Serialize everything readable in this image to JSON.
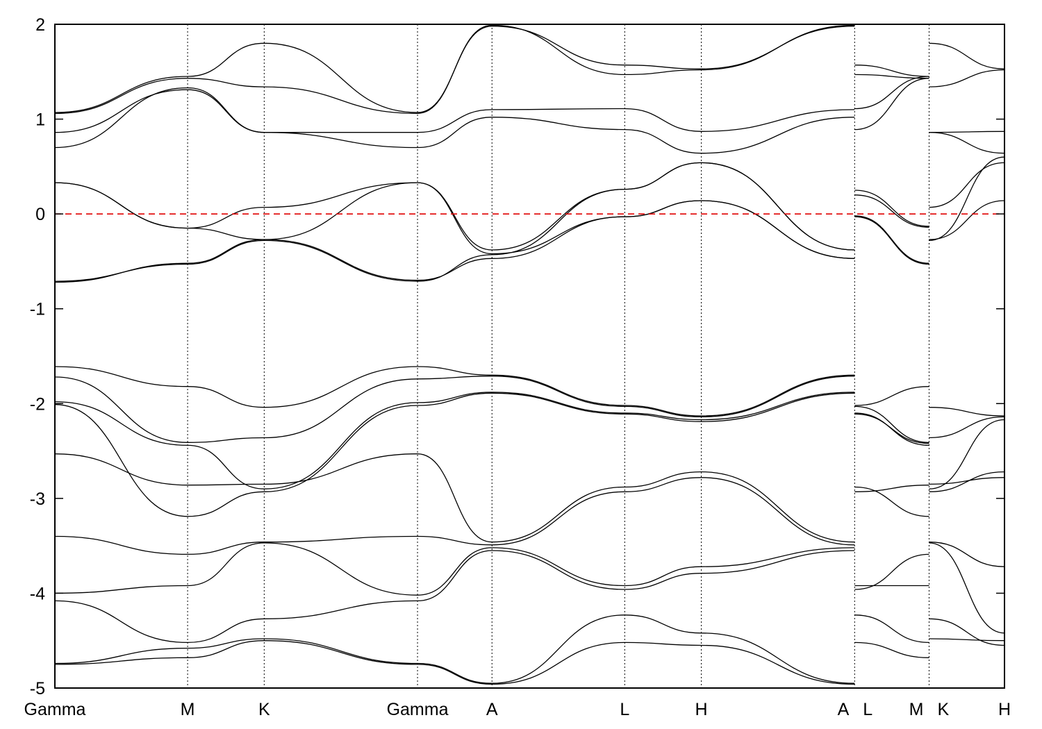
{
  "chart_data": {
    "type": "line",
    "title": "",
    "xlabel": "",
    "ylabel": "",
    "ylim": [
      -5,
      2
    ],
    "y_ticks": [
      "-5",
      "-4",
      "-3",
      "-2",
      "-1",
      "0",
      "1",
      "2"
    ],
    "k_points": [
      "Gamma",
      "M",
      "K",
      "Gamma",
      "A",
      "L",
      "H",
      "A",
      "L",
      "M",
      "K",
      "H"
    ],
    "k_positions": [
      0,
      1.0,
      1.577,
      2.732,
      3.293,
      4.293,
      4.87,
      6.025,
      6.025,
      6.586,
      6.586,
      7.154
    ],
    "path_breaks": [
      6.025,
      6.586
    ],
    "fermi_level": 0,
    "fermi_line_color": "#e00000",
    "band_color": "#000000",
    "grid": false,
    "series": [
      {
        "x": [
          0,
          1.0,
          1.577,
          2.732,
          3.293,
          4.293,
          4.87,
          6.025
        ],
        "y": [
          0.33,
          -0.15,
          0.07,
          0.33,
          -0.42,
          -0.03,
          0.14,
          -0.47
        ]
      },
      {
        "x": [
          0,
          1.0,
          1.577,
          2.732,
          3.293,
          4.293,
          4.87,
          6.025
        ],
        "y": [
          0.33,
          -0.15,
          -0.27,
          0.33,
          -0.38,
          0.26,
          0.54,
          -0.38
        ]
      },
      {
        "x": [
          0,
          1.0,
          1.577,
          2.732,
          3.293,
          4.293,
          4.87,
          6.025
        ],
        "y": [
          -0.72,
          -0.52,
          -0.27,
          -0.7,
          -0.47,
          -0.03,
          0.14,
          -0.47
        ]
      },
      {
        "x": [
          0,
          1.0,
          1.577,
          2.732,
          3.293,
          4.293,
          4.87,
          6.025
        ],
        "y": [
          -0.71,
          -0.53,
          -0.28,
          -0.71,
          -0.43,
          0.26,
          0.54,
          -0.38
        ]
      },
      {
        "x": [
          0,
          1.0,
          1.577,
          2.732,
          3.293,
          4.293,
          4.87,
          6.025
        ],
        "y": [
          0.7,
          1.33,
          0.86,
          0.7,
          1.02,
          0.89,
          0.64,
          1.02
        ]
      },
      {
        "x": [
          0,
          1.0,
          1.577,
          2.732,
          3.293,
          4.293,
          4.87,
          6.025
        ],
        "y": [
          0.86,
          1.31,
          0.86,
          0.86,
          1.1,
          1.11,
          0.87,
          1.1
        ]
      },
      {
        "x": [
          0,
          1.0,
          1.577,
          2.732,
          3.293,
          4.293,
          4.87,
          6.025
        ],
        "y": [
          1.06,
          1.43,
          1.34,
          1.06,
          1.99,
          1.47,
          1.52,
          1.99
        ]
      },
      {
        "x": [
          0,
          1.0,
          1.577,
          2.732,
          3.293,
          4.293,
          4.87,
          6.025
        ],
        "y": [
          1.07,
          1.45,
          1.8,
          1.07,
          1.98,
          1.57,
          1.53,
          1.98
        ]
      },
      {
        "x": [
          0,
          1.0,
          1.577,
          2.732,
          3.293,
          4.293,
          4.87,
          6.025
        ],
        "y": [
          -1.61,
          -1.82,
          -2.04,
          -1.61,
          -1.7,
          -2.02,
          -2.13,
          -1.7
        ]
      },
      {
        "x": [
          0,
          1.0,
          1.577,
          2.732,
          3.293,
          4.293,
          4.87,
          6.025
        ],
        "y": [
          -1.72,
          -2.41,
          -2.36,
          -1.74,
          -1.71,
          -2.03,
          -2.14,
          -1.71
        ]
      },
      {
        "x": [
          0,
          1.0,
          1.577,
          2.732,
          3.293,
          4.293,
          4.87,
          6.025
        ],
        "y": [
          -1.98,
          -2.44,
          -2.9,
          -1.99,
          -1.88,
          -2.1,
          -2.17,
          -1.88
        ]
      },
      {
        "x": [
          0,
          1.0,
          1.577,
          2.732,
          3.293,
          4.293,
          4.87,
          6.025
        ],
        "y": [
          -2.01,
          -3.19,
          -2.93,
          -2.02,
          -1.89,
          -2.11,
          -2.19,
          -1.89
        ]
      },
      {
        "x": [
          0,
          1.0,
          1.577,
          2.732,
          3.293,
          4.293,
          4.87,
          6.025
        ],
        "y": [
          -2.53,
          -2.86,
          -2.85,
          -2.53,
          -3.46,
          -2.88,
          -2.72,
          -3.46
        ]
      },
      {
        "x": [
          0,
          1.0,
          1.577,
          2.732,
          3.293,
          4.293,
          4.87,
          6.025
        ],
        "y": [
          -3.4,
          -3.59,
          -3.46,
          -3.4,
          -3.49,
          -2.93,
          -2.78,
          -3.49
        ]
      },
      {
        "x": [
          0,
          1.0,
          1.577,
          2.732,
          3.293,
          4.293,
          4.87,
          6.025
        ],
        "y": [
          -4.0,
          -3.92,
          -3.47,
          -4.02,
          -3.52,
          -3.92,
          -3.72,
          -3.52
        ]
      },
      {
        "x": [
          0,
          1.0,
          1.577,
          2.732,
          3.293,
          4.293,
          4.87,
          6.025
        ],
        "y": [
          -4.08,
          -4.52,
          -4.27,
          -4.08,
          -3.55,
          -3.96,
          -3.79,
          -3.55
        ]
      },
      {
        "x": [
          0,
          1.0,
          1.577,
          2.732,
          3.293,
          4.293,
          4.87,
          6.025
        ],
        "y": [
          -4.74,
          -4.58,
          -4.48,
          -4.74,
          -4.95,
          -4.23,
          -4.42,
          -4.95
        ]
      },
      {
        "x": [
          0,
          1.0,
          1.577,
          2.732,
          3.293,
          4.293,
          4.87,
          6.025
        ],
        "y": [
          -4.75,
          -4.68,
          -4.5,
          -4.75,
          -4.96,
          -4.52,
          -4.55,
          -4.96
        ]
      },
      {
        "x": [
          6.025,
          6.586
        ],
        "y": [
          0.25,
          -0.13
        ]
      },
      {
        "x": [
          6.025,
          6.586
        ],
        "y": [
          0.2,
          -0.14
        ]
      },
      {
        "x": [
          6.025,
          6.586
        ],
        "y": [
          -0.02,
          -0.52
        ]
      },
      {
        "x": [
          6.025,
          6.586
        ],
        "y": [
          -0.03,
          -0.53
        ]
      },
      {
        "x": [
          6.025,
          6.586
        ],
        "y": [
          0.89,
          1.43
        ]
      },
      {
        "x": [
          6.025,
          6.586
        ],
        "y": [
          1.11,
          1.45
        ]
      },
      {
        "x": [
          6.025,
          6.586
        ],
        "y": [
          1.47,
          1.43
        ]
      },
      {
        "x": [
          6.025,
          6.586
        ],
        "y": [
          1.57,
          1.45
        ]
      },
      {
        "x": [
          6.025,
          6.586
        ],
        "y": [
          -2.02,
          -1.82
        ]
      },
      {
        "x": [
          6.025,
          6.586
        ],
        "y": [
          -2.03,
          -2.41
        ]
      },
      {
        "x": [
          6.025,
          6.586
        ],
        "y": [
          -2.1,
          -2.44
        ]
      },
      {
        "x": [
          6.025,
          6.586
        ],
        "y": [
          -2.11,
          -2.42
        ]
      },
      {
        "x": [
          6.025,
          6.586
        ],
        "y": [
          -2.88,
          -3.19
        ]
      },
      {
        "x": [
          6.025,
          6.586
        ],
        "y": [
          -2.93,
          -2.86
        ]
      },
      {
        "x": [
          6.025,
          6.586
        ],
        "y": [
          -3.92,
          -3.92
        ]
      },
      {
        "x": [
          6.025,
          6.586
        ],
        "y": [
          -3.96,
          -3.59
        ]
      },
      {
        "x": [
          6.025,
          6.586
        ],
        "y": [
          -4.23,
          -4.52
        ]
      },
      {
        "x": [
          6.025,
          6.586
        ],
        "y": [
          -4.52,
          -4.68
        ]
      },
      {
        "x": [
          6.586,
          7.154
        ],
        "y": [
          0.07,
          0.54
        ]
      },
      {
        "x": [
          6.586,
          7.154
        ],
        "y": [
          -0.27,
          0.14
        ]
      },
      {
        "x": [
          6.586,
          7.154
        ],
        "y": [
          -0.28,
          0.6
        ]
      },
      {
        "x": [
          6.586,
          7.154
        ],
        "y": [
          0.86,
          0.64
        ]
      },
      {
        "x": [
          6.586,
          7.154
        ],
        "y": [
          0.86,
          0.87
        ]
      },
      {
        "x": [
          6.586,
          7.154
        ],
        "y": [
          1.34,
          1.52
        ]
      },
      {
        "x": [
          6.586,
          7.154
        ],
        "y": [
          1.8,
          1.53
        ]
      },
      {
        "x": [
          6.586,
          7.154
        ],
        "y": [
          -2.04,
          -2.13
        ]
      },
      {
        "x": [
          6.586,
          7.154
        ],
        "y": [
          -2.36,
          -2.14
        ]
      },
      {
        "x": [
          6.586,
          7.154
        ],
        "y": [
          -2.9,
          -2.17
        ]
      },
      {
        "x": [
          6.586,
          7.154
        ],
        "y": [
          -2.93,
          -2.72
        ]
      },
      {
        "x": [
          6.586,
          7.154
        ],
        "y": [
          -2.85,
          -2.78
        ]
      },
      {
        "x": [
          6.586,
          7.154
        ],
        "y": [
          -3.46,
          -3.72
        ]
      },
      {
        "x": [
          6.586,
          7.154
        ],
        "y": [
          -3.47,
          -4.42
        ]
      },
      {
        "x": [
          6.586,
          7.154
        ],
        "y": [
          -4.27,
          -4.55
        ]
      },
      {
        "x": [
          6.586,
          7.154
        ],
        "y": [
          -4.48,
          -4.5
        ]
      }
    ]
  }
}
